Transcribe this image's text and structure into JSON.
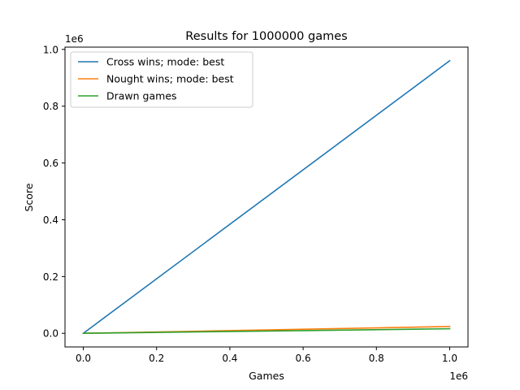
{
  "chart_data": {
    "type": "line",
    "title": "Results for 1000000 games",
    "xlabel": "Games",
    "ylabel": "Score",
    "x_offset_label": "1e6",
    "y_offset_label": "1e6",
    "x_ticks": [
      "0.0",
      "0.2",
      "0.4",
      "0.6",
      "0.8",
      "1.0"
    ],
    "y_ticks": [
      "0.0",
      "0.2",
      "0.4",
      "0.6",
      "0.8",
      "1.0"
    ],
    "xlim": [
      -50000,
      1050000
    ],
    "ylim": [
      -48000,
      1008000
    ],
    "legend_position": "top-left",
    "grid": false,
    "series": [
      {
        "name": "Cross wins; mode: best",
        "color": "#1f77b4",
        "x": [
          0,
          1000000
        ],
        "y": [
          0,
          960000
        ]
      },
      {
        "name": "Nought wins; mode: best",
        "color": "#ff7f0e",
        "x": [
          0,
          1000000
        ],
        "y": [
          0,
          24000
        ]
      },
      {
        "name": "Drawn games",
        "color": "#2ca02c",
        "x": [
          0,
          1000000
        ],
        "y": [
          0,
          16000
        ]
      }
    ]
  }
}
